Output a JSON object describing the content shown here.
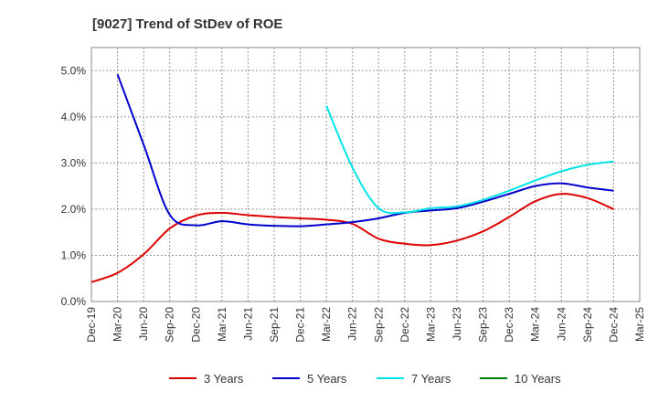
{
  "chart_data": {
    "type": "line",
    "title": "[9027]  Trend of StDev of ROE",
    "xlabel": "",
    "ylabel": "",
    "x_ticks": [
      "Dec-19",
      "Mar-20",
      "Jun-20",
      "Sep-20",
      "Dec-20",
      "Mar-21",
      "Jun-21",
      "Sep-21",
      "Dec-21",
      "Mar-22",
      "Jun-22",
      "Sep-22",
      "Dec-22",
      "Mar-23",
      "Jun-23",
      "Sep-23",
      "Dec-23",
      "Mar-24",
      "Jun-24",
      "Sep-24",
      "Dec-24",
      "Mar-25"
    ],
    "y_ticks": [
      "0.0%",
      "1.0%",
      "2.0%",
      "3.0%",
      "4.0%",
      "5.0%"
    ],
    "ylim": [
      0,
      5.5
    ],
    "grid": true,
    "legend_position": "bottom",
    "series": [
      {
        "name": "3 Years",
        "color": "#dd0000",
        "points": [
          [
            "Dec-19",
            0.42
          ],
          [
            "Mar-20",
            0.62
          ],
          [
            "Jun-20",
            1.02
          ],
          [
            "Sep-20",
            1.58
          ],
          [
            "Dec-20",
            1.86
          ],
          [
            "Mar-21",
            1.92
          ],
          [
            "Jun-21",
            1.87
          ],
          [
            "Sep-21",
            1.83
          ],
          [
            "Dec-21",
            1.8
          ],
          [
            "Mar-22",
            1.77
          ],
          [
            "Jun-22",
            1.68
          ],
          [
            "Sep-22",
            1.36
          ],
          [
            "Dec-22",
            1.25
          ],
          [
            "Mar-23",
            1.22
          ],
          [
            "Jun-23",
            1.32
          ],
          [
            "Sep-23",
            1.52
          ],
          [
            "Dec-23",
            1.83
          ],
          [
            "Mar-24",
            2.17
          ],
          [
            "Jun-24",
            2.33
          ],
          [
            "Sep-24",
            2.24
          ],
          [
            "Dec-24",
            2.0
          ]
        ]
      },
      {
        "name": "5 Years",
        "color": "#0000cc",
        "points": [
          [
            "Mar-20",
            4.92
          ],
          [
            "Jun-20",
            3.4
          ],
          [
            "Sep-20",
            1.88
          ],
          [
            "Dec-20",
            1.65
          ],
          [
            "Mar-21",
            1.74
          ],
          [
            "Jun-21",
            1.67
          ],
          [
            "Sep-21",
            1.64
          ],
          [
            "Dec-21",
            1.63
          ],
          [
            "Mar-22",
            1.67
          ],
          [
            "Jun-22",
            1.72
          ],
          [
            "Sep-22",
            1.8
          ],
          [
            "Dec-22",
            1.92
          ],
          [
            "Mar-23",
            1.97
          ],
          [
            "Jun-23",
            2.02
          ],
          [
            "Sep-23",
            2.16
          ],
          [
            "Dec-23",
            2.33
          ],
          [
            "Mar-24",
            2.5
          ],
          [
            "Jun-24",
            2.56
          ],
          [
            "Sep-24",
            2.47
          ],
          [
            "Dec-24",
            2.4
          ]
        ]
      },
      {
        "name": "7 Years",
        "color": "#00e5e5",
        "points": [
          [
            "Mar-22",
            4.24
          ],
          [
            "Jun-22",
            2.9
          ],
          [
            "Sep-22",
            2.02
          ],
          [
            "Dec-22",
            1.93
          ],
          [
            "Mar-23",
            2.02
          ],
          [
            "Jun-23",
            2.06
          ],
          [
            "Sep-23",
            2.2
          ],
          [
            "Dec-23",
            2.4
          ],
          [
            "Mar-24",
            2.62
          ],
          [
            "Jun-24",
            2.82
          ],
          [
            "Sep-24",
            2.96
          ],
          [
            "Dec-24",
            3.03
          ]
        ]
      },
      {
        "name": "10 Years",
        "color": "#008000",
        "points": []
      }
    ]
  }
}
